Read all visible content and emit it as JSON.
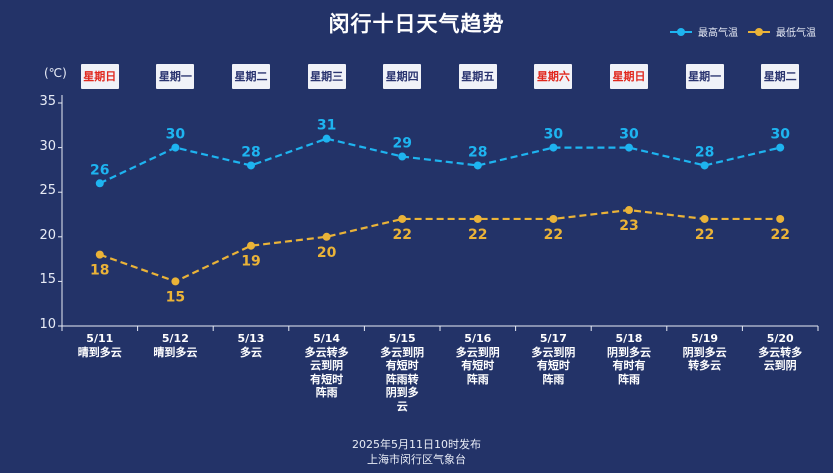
{
  "page": {
    "title": "闵行十日天气趋势",
    "unit_label": "(℃)",
    "footer_line1": "2025年5月11日10时发布",
    "footer_line2": "上海市闵行区气象台"
  },
  "colors": {
    "background": "#233368",
    "high": "#1eb4f0",
    "low": "#eab338",
    "weekend": "#e1281e"
  },
  "chart_data": {
    "type": "line",
    "title": "闵行十日天气趋势",
    "ylabel": "(℃)",
    "ylim": [
      10,
      35
    ],
    "yticks": [
      "10",
      "15",
      "20",
      "25",
      "30",
      "35"
    ],
    "legend_position": "top-right",
    "categories": [
      "5/11",
      "5/12",
      "5/13",
      "5/14",
      "5/15",
      "5/16",
      "5/17",
      "5/18",
      "5/19",
      "5/20"
    ],
    "weekdays": [
      {
        "label": "星期日",
        "weekend": true
      },
      {
        "label": "星期一",
        "weekend": false
      },
      {
        "label": "星期二",
        "weekend": false
      },
      {
        "label": "星期三",
        "weekend": false
      },
      {
        "label": "星期四",
        "weekend": false
      },
      {
        "label": "星期五",
        "weekend": false
      },
      {
        "label": "星期六",
        "weekend": true
      },
      {
        "label": "星期日",
        "weekend": true
      },
      {
        "label": "星期一",
        "weekend": false
      },
      {
        "label": "星期二",
        "weekend": false
      }
    ],
    "weather_lines": [
      [
        "晴到多云"
      ],
      [
        "晴到多云"
      ],
      [
        "多云"
      ],
      [
        "多云转多",
        "云到阴",
        "有短时",
        "阵雨"
      ],
      [
        "多云到阴",
        "有短时",
        "阵雨转",
        "阴到多",
        "云"
      ],
      [
        "多云到阴",
        "有短时",
        "阵雨"
      ],
      [
        "多云到阴",
        "有短时",
        "阵雨"
      ],
      [
        "阴到多云",
        "有时有",
        "阵雨"
      ],
      [
        "阴到多云",
        "转多云"
      ],
      [
        "多云转多",
        "云到阴"
      ]
    ],
    "series": [
      {
        "name": "最高气温",
        "values": [
          26,
          30,
          28,
          31,
          29,
          28,
          30,
          30,
          28,
          30
        ]
      },
      {
        "name": "最低气温",
        "values": [
          18,
          15,
          19,
          20,
          22,
          22,
          22,
          23,
          22,
          22
        ]
      }
    ]
  }
}
